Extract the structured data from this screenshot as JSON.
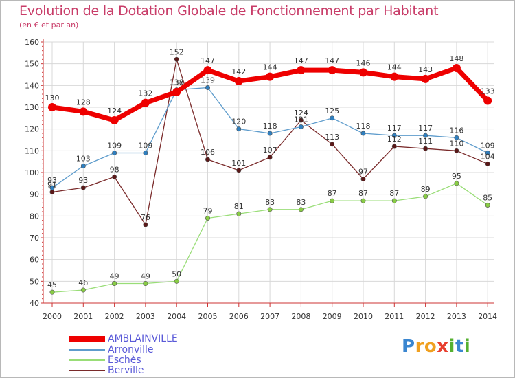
{
  "title": "Evolution de la Dotation Globale de Fonctionnement par Habitant",
  "subtitle": "(en € et par an)",
  "logo": {
    "p": "P",
    "r": "r",
    "o": "o",
    "x": "x",
    "i1": "i",
    "t": "t",
    "i2": "i"
  },
  "colors": {
    "title": "#c83c68",
    "axis": "#cc3333",
    "grid": "#d8d8d8",
    "legend_text": "#5a5ad8"
  },
  "chart_data": {
    "type": "line",
    "title": "Evolution de la Dotation Globale de Fonctionnement par Habitant",
    "subtitle": "(en € et par an)",
    "x": [
      2000,
      2001,
      2002,
      2003,
      2004,
      2005,
      2006,
      2007,
      2008,
      2009,
      2010,
      2011,
      2012,
      2013,
      2014
    ],
    "ylim": [
      40,
      160
    ],
    "yticks": [
      40,
      50,
      60,
      70,
      80,
      90,
      100,
      110,
      120,
      130,
      140,
      150,
      160
    ],
    "grid": true,
    "legend_position": "bottom-left",
    "series": [
      {
        "name": "Eschès",
        "color": "#99dd77",
        "dot": "#88cc44",
        "width": 1.3,
        "radius": 3.2,
        "values": [
          45,
          46,
          49,
          49,
          50,
          79,
          81,
          83,
          83,
          87,
          87,
          87,
          89,
          95,
          85
        ]
      },
      {
        "name": "Berville",
        "color": "#7a2a2a",
        "dot": "#5a1818",
        "width": 1.3,
        "radius": 3.2,
        "values": [
          91,
          93,
          98,
          76,
          152,
          106,
          101,
          107,
          124,
          113,
          97,
          112,
          111,
          110,
          104
        ]
      },
      {
        "name": "Arronville",
        "color": "#5e9ccc",
        "dot": "#2f7fbf",
        "width": 1.3,
        "radius": 3.2,
        "values": [
          93,
          103,
          109,
          109,
          138,
          139,
          120,
          118,
          121,
          125,
          118,
          117,
          117,
          116,
          109
        ]
      },
      {
        "name": "AMBLAINVILLE",
        "color": "#ee0000",
        "dot": "#ee0000",
        "width": 7,
        "radius": 6,
        "values": [
          130,
          128,
          124,
          132,
          137,
          147,
          142,
          144,
          147,
          147,
          146,
          144,
          143,
          148,
          133
        ]
      }
    ],
    "labels": [
      {
        "text": "130"
      },
      {
        "text": "128"
      },
      {
        "text": "124"
      },
      {
        "text": "132"
      },
      {
        "text": "137"
      },
      {
        "text": "147"
      },
      {
        "text": "142"
      },
      {
        "text": "144"
      },
      {
        "text": "147"
      },
      {
        "text": "147"
      },
      {
        "text": "146"
      },
      {
        "text": "144"
      },
      {
        "text": "143"
      },
      {
        "text": "148"
      },
      {
        "text": "133"
      },
      {
        "text": "93"
      },
      {
        "text": "103"
      },
      {
        "text": "109"
      },
      {
        "text": "109"
      },
      {
        "text": "138"
      },
      {
        "text": "139"
      },
      {
        "text": "120"
      },
      {
        "text": "118"
      },
      {
        "text": "121"
      },
      {
        "text": "125"
      },
      {
        "text": "118"
      },
      {
        "text": "117"
      },
      {
        "text": "117"
      },
      {
        "text": "116"
      },
      {
        "text": "109"
      },
      {
        "text": "45"
      },
      {
        "text": "46"
      },
      {
        "text": "49"
      },
      {
        "text": "49"
      },
      {
        "text": "50"
      },
      {
        "text": "79"
      },
      {
        "text": "81"
      },
      {
        "text": "83"
      },
      {
        "text": "83"
      },
      {
        "text": "87"
      },
      {
        "text": "87"
      },
      {
        "text": "87"
      },
      {
        "text": "89"
      },
      {
        "text": "95"
      },
      {
        "text": "85"
      },
      {
        "text": "91"
      },
      {
        "text": "93"
      },
      {
        "text": "98"
      },
      {
        "text": "76"
      },
      {
        "text": "152"
      },
      {
        "text": "106"
      },
      {
        "text": "101"
      },
      {
        "text": "107"
      },
      {
        "text": "124"
      },
      {
        "text": "113"
      },
      {
        "text": "97"
      },
      {
        "text": "112"
      },
      {
        "text": "111"
      },
      {
        "text": "110"
      },
      {
        "text": "104"
      }
    ],
    "legend": [
      {
        "name": "AMBLAINVILLE",
        "color": "#ee0000",
        "width": 9
      },
      {
        "name": "Arronville",
        "color": "#5e9ccc",
        "width": 2
      },
      {
        "name": "Eschès",
        "color": "#99dd77",
        "width": 2
      },
      {
        "name": "Berville",
        "color": "#7a2a2a",
        "width": 2
      }
    ]
  }
}
